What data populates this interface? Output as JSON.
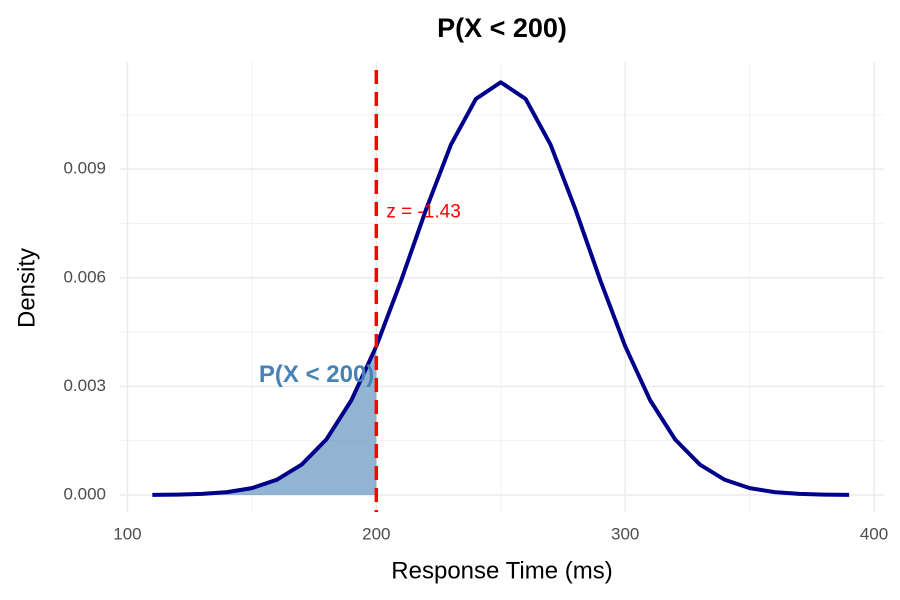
{
  "chart_data": {
    "type": "line",
    "title": "P(X < 200)",
    "x_label": "Response Time (ms)",
    "y_label": "Density",
    "x": [
      110,
      120,
      130,
      140,
      150,
      160,
      170,
      180,
      190,
      200,
      210,
      220,
      230,
      240,
      250,
      260,
      270,
      280,
      290,
      300,
      310,
      320,
      330,
      340,
      350,
      360,
      370,
      380,
      390
    ],
    "series": [
      {
        "name": "Density",
        "color": "#00008b",
        "values": [
          4e-06,
          1e-05,
          3e-05,
          8e-05,
          0.00019,
          0.00042,
          0.00084,
          0.00154,
          0.00262,
          0.00411,
          0.00593,
          0.00789,
          0.00968,
          0.01094,
          0.0114,
          0.01094,
          0.00968,
          0.00789,
          0.00593,
          0.00411,
          0.00262,
          0.00154,
          0.00084,
          0.00042,
          0.00019,
          8e-05,
          3e-05,
          1e-05,
          4e-06
        ]
      }
    ],
    "shade_to": 200,
    "shade_color": "#4682b4",
    "shade_label": "P(X < 200)",
    "vline": 200,
    "vline_color": "#ff0000",
    "vline_label": "z = -1.43",
    "xlim": [
      97,
      404
    ],
    "ylim": [
      -0.00047,
      0.01196
    ],
    "xticks": [
      100,
      200,
      300,
      400
    ],
    "yticks": [
      {
        "value": 0,
        "label": "0.000"
      },
      {
        "value": 0.003,
        "label": "0.003"
      },
      {
        "value": 0.006,
        "label": "0.006"
      },
      {
        "value": 0.009,
        "label": "0.009"
      }
    ],
    "xminorticks": [
      150,
      250,
      350
    ],
    "yminorticks": [
      0.0015,
      0.0045,
      0.0075,
      0.0105
    ],
    "grid": true
  }
}
